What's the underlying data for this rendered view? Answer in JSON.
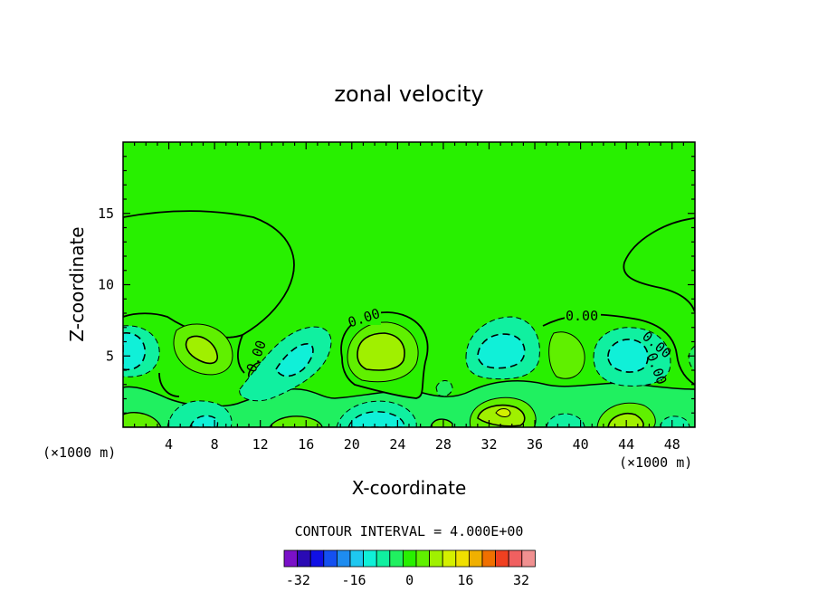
{
  "chart_data": {
    "type": "contour",
    "title": "zonal velocity",
    "xlabel": "X-coordinate",
    "ylabel": "Z-coordinate",
    "x_unit_note": "(×1000 m)",
    "xlim": [
      0,
      50
    ],
    "ylim": [
      0,
      20
    ],
    "x_ticks": [
      4,
      8,
      12,
      16,
      20,
      24,
      28,
      32,
      36,
      40,
      44,
      48
    ],
    "y_ticks": [
      5,
      10,
      15
    ],
    "contour_interval_text": "CONTOUR INTERVAL = 4.000E+00",
    "contour_labels": [
      "0.00",
      "0.00",
      "0.00",
      "0.00",
      "0.00"
    ],
    "colorbar": {
      "levels": [
        -36,
        -32,
        -28,
        -24,
        -20,
        -16,
        -12,
        -8,
        -4,
        0,
        4,
        8,
        12,
        16,
        20,
        24,
        28,
        32,
        36
      ],
      "tick_labels": [
        "-32",
        "-16",
        "0",
        "16",
        "32"
      ],
      "tick_values": [
        -32,
        -16,
        0,
        16,
        32
      ],
      "colors": [
        "#7a10c8",
        "#2a0ab4",
        "#1010e6",
        "#1450f0",
        "#1e8cf0",
        "#1ec8f0",
        "#10f0d8",
        "#10f0a0",
        "#20f060",
        "#28f000",
        "#60f000",
        "#a0f000",
        "#d4f000",
        "#f0e000",
        "#f0b000",
        "#f07000",
        "#f04020",
        "#f06060",
        "#f09090"
      ]
    },
    "features": [
      {
        "kind": "positive",
        "x": 6.5,
        "z": 5.5,
        "value": 12
      },
      {
        "kind": "positive",
        "x": 21.5,
        "z": 5.2,
        "value": 12
      },
      {
        "kind": "positive",
        "x": 33,
        "z": 1.1,
        "value": 16
      },
      {
        "kind": "positive",
        "x": 39,
        "z": 5,
        "value": 4
      },
      {
        "kind": "positive",
        "x": 44,
        "z": 0.5,
        "value": 12
      },
      {
        "kind": "negative",
        "x": 1,
        "z": 5.5,
        "value": -8
      },
      {
        "kind": "negative",
        "x": 15,
        "z": 5,
        "value": -8
      },
      {
        "kind": "negative",
        "x": 33,
        "z": 5.6,
        "value": -8
      },
      {
        "kind": "negative",
        "x": 44,
        "z": 5,
        "value": -8
      },
      {
        "kind": "negative",
        "x": 22,
        "z": 0.5,
        "value": -8
      },
      {
        "kind": "negative",
        "x": 7.5,
        "z": 0.6,
        "value": -8
      },
      {
        "kind": "negative",
        "x": 39,
        "z": 0.4,
        "value": -4
      }
    ]
  }
}
